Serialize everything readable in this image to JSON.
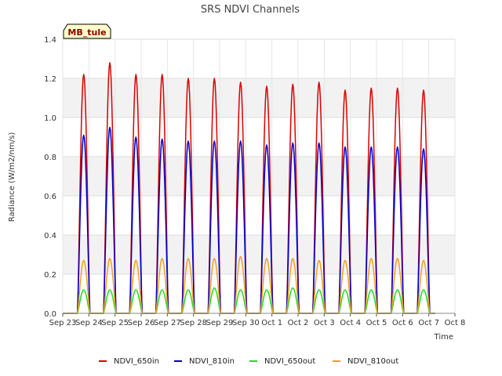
{
  "chart_data": {
    "type": "line",
    "title": "SRS NDVI Channels",
    "xlabel": "Time",
    "ylabel": "Radiance (W/m2/nm/s)",
    "badge": "MB_tule",
    "ylim": [
      0,
      1.4
    ],
    "yticks": [
      "0.0",
      "0.2",
      "0.4",
      "0.6",
      "0.8",
      "1.0",
      "1.2",
      "1.4"
    ],
    "xticks": [
      "Sep 23",
      "Sep 24",
      "Sep 25",
      "Sep 26",
      "Sep 27",
      "Sep 28",
      "Sep 29",
      "Sep 30",
      "Oct 1",
      "Oct 2",
      "Oct 3",
      "Oct 4",
      "Oct 5",
      "Oct 6",
      "Oct 7",
      "Oct 8"
    ],
    "grid": true,
    "legend_position": "bottom",
    "peak_day_offset": 0.8,
    "series": [
      {
        "name": "NDVI_650in",
        "color": "#dd0000",
        "daily_peaks": [
          1.22,
          1.28,
          1.22,
          1.22,
          1.2,
          1.2,
          1.18,
          1.16,
          1.17,
          1.18,
          1.14,
          1.15,
          1.15,
          1.14
        ]
      },
      {
        "name": "NDVI_810in",
        "color": "#0000cc",
        "daily_peaks": [
          0.91,
          0.95,
          0.9,
          0.89,
          0.88,
          0.88,
          0.88,
          0.86,
          0.87,
          0.87,
          0.85,
          0.85,
          0.85,
          0.84
        ]
      },
      {
        "name": "NDVI_650out",
        "color": "#22dd22",
        "daily_peaks": [
          0.12,
          0.12,
          0.12,
          0.12,
          0.12,
          0.13,
          0.12,
          0.12,
          0.13,
          0.12,
          0.12,
          0.12,
          0.12,
          0.12
        ]
      },
      {
        "name": "NDVI_810out",
        "color": "#f0a020",
        "daily_peaks": [
          0.27,
          0.28,
          0.27,
          0.28,
          0.28,
          0.28,
          0.29,
          0.28,
          0.28,
          0.27,
          0.27,
          0.28,
          0.28,
          0.27
        ]
      }
    ]
  }
}
